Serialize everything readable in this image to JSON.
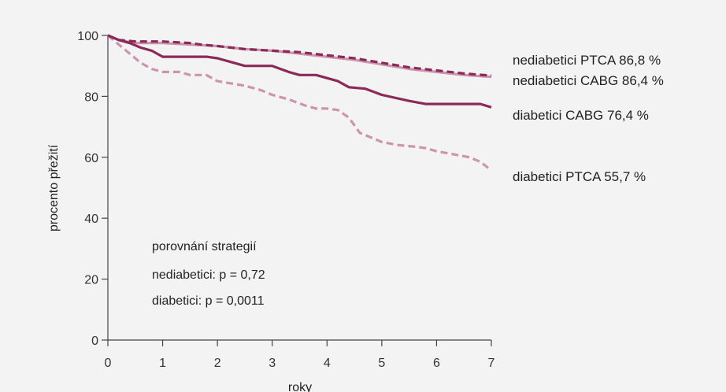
{
  "chart_data": {
    "type": "line",
    "title": "",
    "xlabel": "roky",
    "ylabel": "procento přežití",
    "xlim": [
      0,
      7
    ],
    "ylim": [
      0,
      100
    ],
    "xticks": [
      0,
      1,
      2,
      3,
      4,
      5,
      6,
      7
    ],
    "yticks": [
      0,
      20,
      40,
      60,
      80,
      100
    ],
    "grid": false,
    "series": [
      {
        "name": "nediabetici PTCA 86,8 %",
        "color": "#8b2a58",
        "dash": true,
        "points": [
          [
            0,
            100
          ],
          [
            0.2,
            98.5
          ],
          [
            0.5,
            98
          ],
          [
            1,
            98
          ],
          [
            1.5,
            97.5
          ],
          [
            1.7,
            97
          ],
          [
            2,
            96.5
          ],
          [
            2.5,
            95.5
          ],
          [
            3,
            95
          ],
          [
            3.5,
            94.5
          ],
          [
            4,
            93.5
          ],
          [
            4.5,
            92.5
          ],
          [
            5,
            91
          ],
          [
            5.5,
            89.5
          ],
          [
            6,
            88.5
          ],
          [
            6.5,
            87.5
          ],
          [
            7,
            86.8
          ]
        ]
      },
      {
        "name": "nediabetici CABG 86,4 %",
        "color": "#cc95ad",
        "dash": false,
        "points": [
          [
            0,
            100
          ],
          [
            0.2,
            98.5
          ],
          [
            0.5,
            97.5
          ],
          [
            1,
            97.5
          ],
          [
            1.5,
            97
          ],
          [
            2,
            96.5
          ],
          [
            2.5,
            95.5
          ],
          [
            3,
            95
          ],
          [
            3.5,
            94
          ],
          [
            4,
            93
          ],
          [
            4.5,
            92
          ],
          [
            5,
            90.5
          ],
          [
            5.5,
            89
          ],
          [
            6,
            88
          ],
          [
            6.5,
            87
          ],
          [
            7,
            86.4
          ]
        ]
      },
      {
        "name": "diabetici CABG 76,4 %",
        "color": "#8b2a58",
        "dash": false,
        "points": [
          [
            0,
            100
          ],
          [
            0.2,
            98.5
          ],
          [
            0.4,
            97.5
          ],
          [
            0.6,
            96
          ],
          [
            0.8,
            95
          ],
          [
            1,
            93
          ],
          [
            1.4,
            93
          ],
          [
            1.8,
            93
          ],
          [
            2,
            92.5
          ],
          [
            2.3,
            91
          ],
          [
            2.5,
            90
          ],
          [
            3,
            90
          ],
          [
            3.3,
            88
          ],
          [
            3.5,
            87
          ],
          [
            3.8,
            87
          ],
          [
            4,
            86
          ],
          [
            4.2,
            85
          ],
          [
            4.4,
            83
          ],
          [
            4.7,
            82.5
          ],
          [
            5,
            80.5
          ],
          [
            5.5,
            78.5
          ],
          [
            5.8,
            77.5
          ],
          [
            6,
            77.5
          ],
          [
            6.5,
            77.5
          ],
          [
            6.8,
            77.5
          ],
          [
            7,
            76.4
          ]
        ]
      },
      {
        "name": "diabetici PTCA 55,7 %",
        "color": "#cc95ad",
        "dash": true,
        "points": [
          [
            0,
            100
          ],
          [
            0.2,
            97
          ],
          [
            0.4,
            94
          ],
          [
            0.6,
            91
          ],
          [
            0.8,
            89
          ],
          [
            1,
            88
          ],
          [
            1.3,
            88
          ],
          [
            1.5,
            87
          ],
          [
            1.8,
            87
          ],
          [
            2,
            85
          ],
          [
            2.5,
            83.5
          ],
          [
            2.8,
            82
          ],
          [
            3,
            80.5
          ],
          [
            3.3,
            79
          ],
          [
            3.6,
            77
          ],
          [
            3.8,
            76
          ],
          [
            4,
            76
          ],
          [
            4.2,
            75.5
          ],
          [
            4.4,
            73
          ],
          [
            4.6,
            68
          ],
          [
            5,
            65
          ],
          [
            5.3,
            64
          ],
          [
            5.6,
            63.5
          ],
          [
            5.8,
            63
          ],
          [
            6,
            62
          ],
          [
            6.3,
            61
          ],
          [
            6.6,
            60
          ],
          [
            6.8,
            58.5
          ],
          [
            7,
            55.7
          ]
        ]
      }
    ],
    "annotations": [
      "porovnání strategií",
      "nediabetici: p = 0,72",
      "diabetici: p = 0,0011"
    ]
  }
}
